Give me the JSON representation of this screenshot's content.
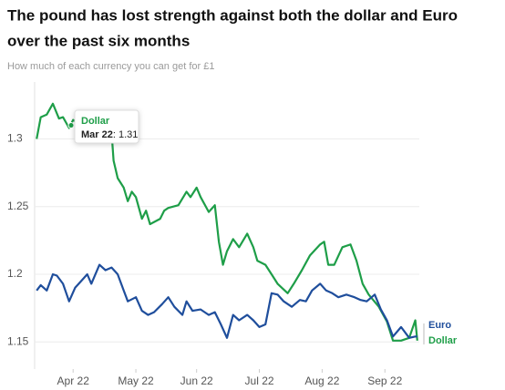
{
  "chart_data": {
    "type": "line",
    "title_lines": [
      "The pound has lost strength against both the dollar and Euro",
      "over the past six months"
    ],
    "subtitle": "How much of each currency you can get for £1",
    "xlim": [
      0,
      190
    ],
    "xticks": [
      {
        "value": 19,
        "label": "Apr 22"
      },
      {
        "value": 50,
        "label": "May 22"
      },
      {
        "value": 80,
        "label": "Jun 22"
      },
      {
        "value": 111,
        "label": "Jul 22"
      },
      {
        "value": 142,
        "label": "Aug 22"
      },
      {
        "value": 173,
        "label": "Sep 22"
      }
    ],
    "ylim": [
      1.13,
      1.342
    ],
    "yticks": [
      1.15,
      1.2,
      1.25,
      {
        "value": 1.3,
        "label": "1.3"
      }
    ],
    "grid": true,
    "series": [
      {
        "name": "Dollar",
        "color": "#1e9e48",
        "x": [
          1,
          3,
          6,
          9,
          12,
          14,
          17,
          19,
          28,
          35,
          38,
          39,
          41,
          44,
          46,
          48,
          50,
          53,
          55,
          57,
          62,
          64,
          66,
          71,
          75,
          77,
          80,
          82,
          86,
          89,
          91,
          93,
          95,
          98,
          101,
          105,
          108,
          110,
          114,
          117,
          120,
          125,
          128,
          132,
          136,
          141,
          143,
          145,
          148,
          152,
          156,
          159,
          162,
          165,
          170,
          174,
          177,
          181,
          185,
          188,
          189
        ],
        "values": [
          1.3,
          1.316,
          1.318,
          1.326,
          1.315,
          1.316,
          1.308,
          1.314,
          1.305,
          1.31,
          1.305,
          1.284,
          1.271,
          1.264,
          1.254,
          1.261,
          1.257,
          1.241,
          1.247,
          1.237,
          1.241,
          1.247,
          1.249,
          1.251,
          1.261,
          1.257,
          1.264,
          1.257,
          1.246,
          1.251,
          1.224,
          1.207,
          1.217,
          1.226,
          1.22,
          1.23,
          1.22,
          1.21,
          1.207,
          1.2,
          1.193,
          1.186,
          1.193,
          1.203,
          1.214,
          1.222,
          1.224,
          1.207,
          1.207,
          1.22,
          1.222,
          1.21,
          1.193,
          1.185,
          1.176,
          1.165,
          1.151,
          1.151,
          1.153,
          1.166,
          1.151
        ]
      },
      {
        "name": "Euro",
        "color": "#1f4e9c",
        "x": [
          1,
          3,
          6,
          9,
          11,
          14,
          17,
          20,
          23,
          26,
          28,
          32,
          35,
          38,
          41,
          44,
          46,
          50,
          53,
          56,
          59,
          63,
          66,
          69,
          73,
          75,
          78,
          82,
          86,
          89,
          92,
          95,
          98,
          101,
          105,
          108,
          111,
          114,
          117,
          120,
          123,
          127,
          131,
          134,
          137,
          141,
          144,
          147,
          150,
          154,
          158,
          161,
          164,
          168,
          171,
          174,
          177,
          181,
          185,
          188,
          189
        ],
        "values": [
          1.188,
          1.192,
          1.188,
          1.2,
          1.199,
          1.193,
          1.18,
          1.19,
          1.195,
          1.2,
          1.193,
          1.207,
          1.203,
          1.205,
          1.2,
          1.188,
          1.18,
          1.183,
          1.173,
          1.17,
          1.172,
          1.178,
          1.183,
          1.176,
          1.17,
          1.18,
          1.173,
          1.174,
          1.17,
          1.172,
          1.163,
          1.153,
          1.17,
          1.166,
          1.17,
          1.166,
          1.161,
          1.163,
          1.186,
          1.185,
          1.18,
          1.176,
          1.181,
          1.18,
          1.188,
          1.193,
          1.188,
          1.186,
          1.183,
          1.185,
          1.183,
          1.181,
          1.18,
          1.185,
          1.174,
          1.166,
          1.154,
          1.161,
          1.153,
          1.154,
          1.154
        ]
      }
    ],
    "tooltip": {
      "date": "Mar 22",
      "value": 1.31
    }
  }
}
